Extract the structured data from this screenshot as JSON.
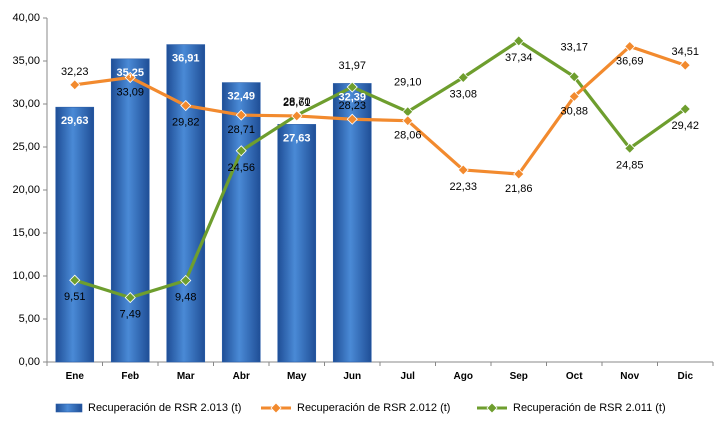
{
  "chart_data": {
    "type": "bar",
    "categories": [
      "Ene",
      "Feb",
      "Mar",
      "Abr",
      "May",
      "Jun",
      "Jul",
      "Ago",
      "Sep",
      "Oct",
      "Nov",
      "Dic"
    ],
    "ylim": [
      0,
      40
    ],
    "yticks": [
      "0,00",
      "5,00",
      "10,00",
      "15,00",
      "20,00",
      "25,00",
      "30,00",
      "35,00",
      "40,00"
    ],
    "series": [
      {
        "name": "Recuperación de RSR 2.013 (t)",
        "type": "bar",
        "color": "#2F6DB8",
        "values": [
          29.63,
          35.25,
          36.91,
          32.49,
          27.63,
          32.39,
          null,
          null,
          null,
          null,
          null,
          null
        ],
        "labels": [
          "29,63",
          "35,25",
          "36,91",
          "32,49",
          "27,63",
          "32,39",
          "",
          "",
          "",
          "",
          "",
          ""
        ]
      },
      {
        "name": "Recuperación de RSR 2.012 (t)",
        "type": "line",
        "color": "#F28A2E",
        "values": [
          32.23,
          33.09,
          29.82,
          28.71,
          28.61,
          28.23,
          28.06,
          22.33,
          21.86,
          30.88,
          36.69,
          34.51
        ],
        "labels": [
          "32,23",
          "33,09",
          "29,82",
          "28,71",
          "28,61",
          "28,23",
          "28,06",
          "22,33",
          "21,86",
          "30,88",
          "36,69",
          "34,51"
        ]
      },
      {
        "name": "Recuperación de RSR 2.011 (t)",
        "type": "line",
        "color": "#6E9E2E",
        "values": [
          9.51,
          7.49,
          9.48,
          24.56,
          28.7,
          31.97,
          29.1,
          33.08,
          37.34,
          33.17,
          24.85,
          29.42
        ],
        "labels": [
          "9,51",
          "7,49",
          "9,48",
          "24,56",
          "28,70",
          "31,97",
          "29,10",
          "33,08",
          "37,34",
          "33,17",
          "24,85",
          "29,42"
        ]
      }
    ],
    "legend": "bottom"
  }
}
